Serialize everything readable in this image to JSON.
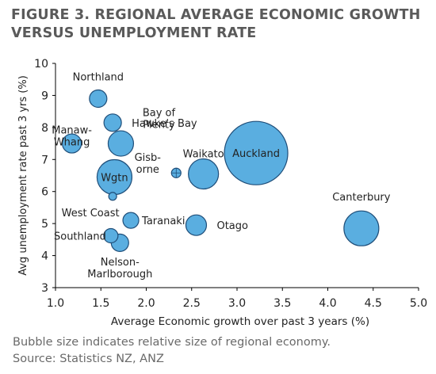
{
  "title_line1": "FIGURE 3. REGIONAL AVERAGE ECONOMIC GROWTH",
  "title_line2": "VERSUS UNEMPLOYMENT RATE",
  "footnote_line1": "Bubble size indicates relative size of regional economy.",
  "footnote_line2": "Source: Statistics NZ, ANZ",
  "colors": {
    "bubble_fill": "#5aaee0",
    "bubble_stroke": "#1f4e79",
    "axis": "#000000",
    "text": "#222222"
  },
  "chart_data": {
    "type": "scatter",
    "subtype": "bubble",
    "xlabel": "Average Economic growth over past 3 years (%)",
    "ylabel": "Avg unemployment rate past 3 yrs (%)",
    "xlim": [
      1.0,
      5.0
    ],
    "ylim": [
      3,
      10
    ],
    "xticks": [
      "1.0",
      "1.5",
      "2.0",
      "2.5",
      "3.0",
      "3.5",
      "4.0",
      "4.5",
      "5.0"
    ],
    "yticks": [
      "3",
      "4",
      "5",
      "6",
      "7",
      "8",
      "9",
      "10"
    ],
    "grid": false,
    "points": [
      {
        "label": "Northland",
        "label_lines": [
          "Northland"
        ],
        "x": 1.47,
        "y": 8.9,
        "size": 11
      },
      {
        "label": "Manaw-Whang",
        "label_lines": [
          "Manaw-",
          "Whang"
        ],
        "x": 1.18,
        "y": 7.5,
        "size": 12
      },
      {
        "label": "Hawke's Bay",
        "label_lines": [
          "Hawke's Bay"
        ],
        "x": 1.63,
        "y": 8.15,
        "size": 11
      },
      {
        "label": "Bay of Plenty",
        "label_lines": [
          "Bay of",
          "Plenty"
        ],
        "x": 1.72,
        "y": 7.5,
        "size": 16
      },
      {
        "label": "Wgtn",
        "label_lines": [
          "Wgtn"
        ],
        "x": 1.65,
        "y": 6.45,
        "size": 22
      },
      {
        "label": "Gisborne",
        "label_lines": [
          "Gisb-",
          "orne"
        ],
        "x": 2.33,
        "y": 6.58,
        "size": 6
      },
      {
        "label": "Waikato",
        "label_lines": [
          "Waikato"
        ],
        "x": 2.63,
        "y": 6.55,
        "size": 19
      },
      {
        "label": "Auckland",
        "label_lines": [
          "Auckland"
        ],
        "x": 3.21,
        "y": 7.2,
        "size": 40
      },
      {
        "label": "West Coast",
        "label_lines": [
          "West Coast"
        ],
        "x": 1.63,
        "y": 5.85,
        "size": 5
      },
      {
        "label": "Taranaki",
        "label_lines": [
          "Taranaki"
        ],
        "x": 1.83,
        "y": 5.1,
        "size": 10
      },
      {
        "label": "Otago",
        "label_lines": [
          "Otago"
        ],
        "x": 2.55,
        "y": 4.95,
        "size": 13
      },
      {
        "label": "Canterbury",
        "label_lines": [
          "Canterbury"
        ],
        "x": 4.37,
        "y": 4.85,
        "size": 22
      },
      {
        "label": "Southland",
        "label_lines": [
          "Southland"
        ],
        "x": 1.61,
        "y": 4.62,
        "size": 9
      },
      {
        "label": "Nelson-Marlborough",
        "label_lines": [
          "Nelson-",
          "Marlborough"
        ],
        "x": 1.71,
        "y": 4.4,
        "size": 11
      }
    ]
  }
}
